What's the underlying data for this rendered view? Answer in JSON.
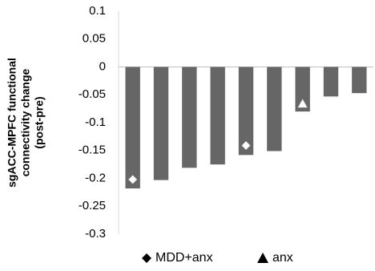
{
  "chart_data": {
    "type": "bar",
    "title": "",
    "xlabel": "",
    "ylabel_lines": [
      "sgACC-MPFC functional",
      "connectivity change",
      "(post-pre)"
    ],
    "ylim": [
      -0.3,
      0.1
    ],
    "yticks": [
      "0.1",
      "0.05",
      "0",
      "-0.05",
      "-0.1",
      "-0.15",
      "-0.2",
      "-0.25",
      "-0.3"
    ],
    "ytick_values": [
      0.1,
      0.05,
      0,
      -0.05,
      -0.1,
      -0.15,
      -0.2,
      -0.25,
      -0.3
    ],
    "grid": false,
    "bar_color": "#666666",
    "values": [
      -0.218,
      -0.203,
      -0.181,
      -0.175,
      -0.158,
      -0.151,
      -0.08,
      -0.053,
      -0.047
    ],
    "markers": [
      {
        "bar_index": 0,
        "shape": "diamond",
        "value": -0.202,
        "group": "MDD+anx"
      },
      {
        "bar_index": 4,
        "shape": "diamond",
        "value": -0.141,
        "group": "MDD+anx"
      },
      {
        "bar_index": 6,
        "shape": "triangle",
        "value": -0.066,
        "group": "anx"
      }
    ],
    "legend_position": "bottom",
    "legend": [
      {
        "symbol": "diamond",
        "label": "MDD+anx"
      },
      {
        "symbol": "triangle",
        "label": "anx"
      }
    ]
  }
}
